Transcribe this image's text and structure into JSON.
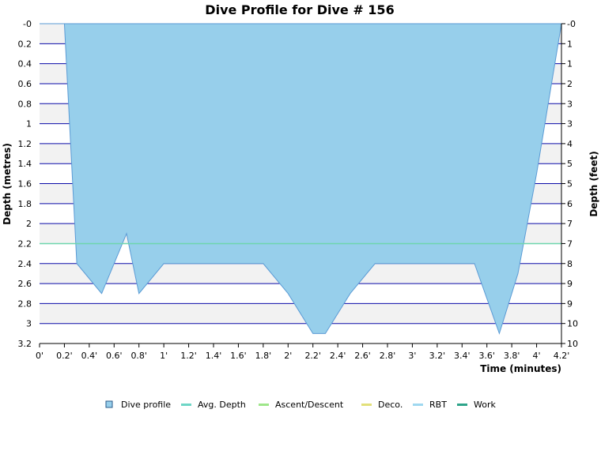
{
  "chart_data": {
    "type": "area",
    "title": "Dive Profile for Dive # 156",
    "xlabel": "Time (minutes)",
    "ylabel": "Depth (metres)",
    "ylabel_right": "Depth (feet)",
    "xlim": [
      0,
      4.2
    ],
    "ylim": [
      0,
      3.2
    ],
    "y_inverted": true,
    "grid": true,
    "legend_position": "bottom",
    "x_ticks": [
      "0'",
      "0.2'",
      "0.4'",
      "0.6'",
      "0.8'",
      "1'",
      "1.2'",
      "1.4'",
      "1.6'",
      "1.8'",
      "2'",
      "2.2'",
      "2.4'",
      "2.6'",
      "2.8'",
      "3'",
      "3.2'",
      "3.4'",
      "3.6'",
      "3.8'",
      "4'",
      "4.2'"
    ],
    "y_ticks_left": [
      "-0",
      "0.2",
      "0.4",
      "0.6",
      "0.8",
      "1",
      "1.2",
      "1.4",
      "1.6",
      "1.8",
      "2",
      "2.2",
      "2.4",
      "2.6",
      "2.8",
      "3",
      "3.2"
    ],
    "y_ticks_right": [
      "-0",
      "1",
      "1",
      "2",
      "3",
      "3",
      "4",
      "5",
      "5",
      "6",
      "7",
      "7",
      "8",
      "9",
      "9",
      "10",
      "10"
    ],
    "series": [
      {
        "name": "Dive profile",
        "color": "#97cfeb",
        "stroke": "#5b9bd5",
        "x": [
          0,
          0.2,
          0.3,
          0.5,
          0.7,
          0.8,
          1.0,
          1.8,
          2.0,
          2.2,
          2.3,
          2.5,
          2.7,
          3.5,
          3.7,
          3.85,
          4.0,
          4.2
        ],
        "y": [
          0,
          0,
          2.4,
          2.7,
          2.1,
          2.7,
          2.4,
          2.4,
          2.7,
          3.1,
          3.1,
          2.7,
          2.4,
          2.4,
          3.1,
          2.5,
          1.5,
          0
        ]
      },
      {
        "name": "Avg. Depth",
        "color": "#6ed6ad",
        "value": 2.2
      }
    ],
    "legend": [
      {
        "label": "Dive profile",
        "color": "#97cfeb",
        "kind": "box"
      },
      {
        "label": "Avg. Depth",
        "color": "#6ed6c6",
        "kind": "line"
      },
      {
        "label": "Ascent/Descent",
        "color": "#9ee68a",
        "kind": "line"
      },
      {
        "label": "Deco.",
        "color": "#e2e07a",
        "kind": "line"
      },
      {
        "label": "RBT",
        "color": "#9fd8f0",
        "kind": "line"
      },
      {
        "label": "Work",
        "color": "#2ea48a",
        "kind": "line"
      }
    ]
  }
}
